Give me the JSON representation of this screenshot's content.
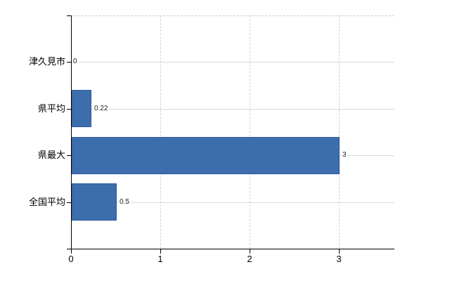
{
  "chart_data": {
    "type": "bar",
    "orientation": "horizontal",
    "title": "",
    "xlabel": "",
    "ylabel": "",
    "categories": [
      "津久見市",
      "県平均",
      "県最大",
      "全国平均"
    ],
    "values": [
      0,
      0.22,
      3,
      0.5
    ],
    "value_labels": [
      "0",
      "0.22",
      "3",
      "0.5"
    ],
    "xlim": [
      0,
      3.62
    ],
    "xticks": [
      0,
      1,
      2,
      3
    ],
    "xtick_labels": [
      "0",
      "1",
      "2",
      "3"
    ],
    "grid": true,
    "legend": false,
    "colors": {
      "bar_fill": "#3c6dad",
      "bar_border": "#2e5e9d",
      "grid_horizontal": "#d6ddd3",
      "grid_vertical": "#d4d0d4",
      "plot_top_border": "#cfcacf",
      "axis": "#000000",
      "text": "#000000",
      "value_label_text": "#1a1a1a",
      "background": "#ffffff"
    }
  }
}
